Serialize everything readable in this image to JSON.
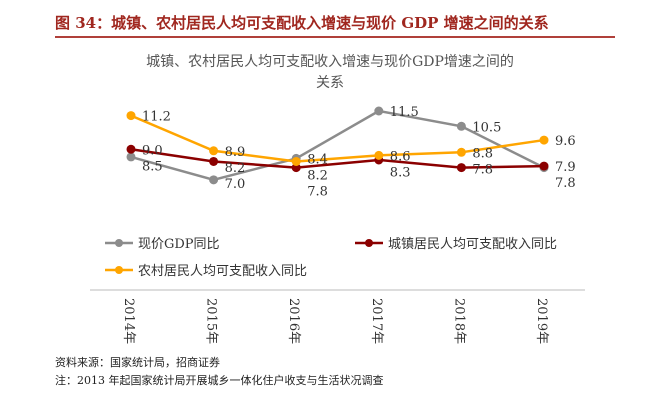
{
  "figure_title": "图 34：城镇、农村居民人均可支配收入增速与现价 GDP 增速之间的关系",
  "source": "资料来源：国家统计局，招商证券",
  "note": "注：2013 年起国家统计局开展城乡一体化住户收支与生活状况调查",
  "chart_data": {
    "type": "line",
    "title": "城镇、农村居民人均可支配收入增速与现价GDP增速之间的关系",
    "title_lines": [
      "城镇、农村居民人均可支配收入增速与现价GDP增速之间的",
      "关系"
    ],
    "categories": [
      "2014年",
      "2015年",
      "2016年",
      "2017年",
      "2018年",
      "2019年"
    ],
    "series": [
      {
        "name": "现价GDP同比",
        "color": "#8c8c8c",
        "values": [
          8.5,
          7.0,
          8.4,
          11.5,
          10.5,
          7.8
        ]
      },
      {
        "name": "城镇居民人均可支配收入同比",
        "color": "#8b0000",
        "values": [
          9.0,
          8.2,
          7.8,
          8.3,
          7.8,
          7.9
        ]
      },
      {
        "name": "农村居民人均可支配收入同比",
        "color": "#ffa500",
        "values": [
          11.2,
          8.9,
          8.2,
          8.6,
          8.8,
          9.6
        ]
      }
    ],
    "legend_position": "bottom",
    "grid": false,
    "y_axis_visible": false
  }
}
